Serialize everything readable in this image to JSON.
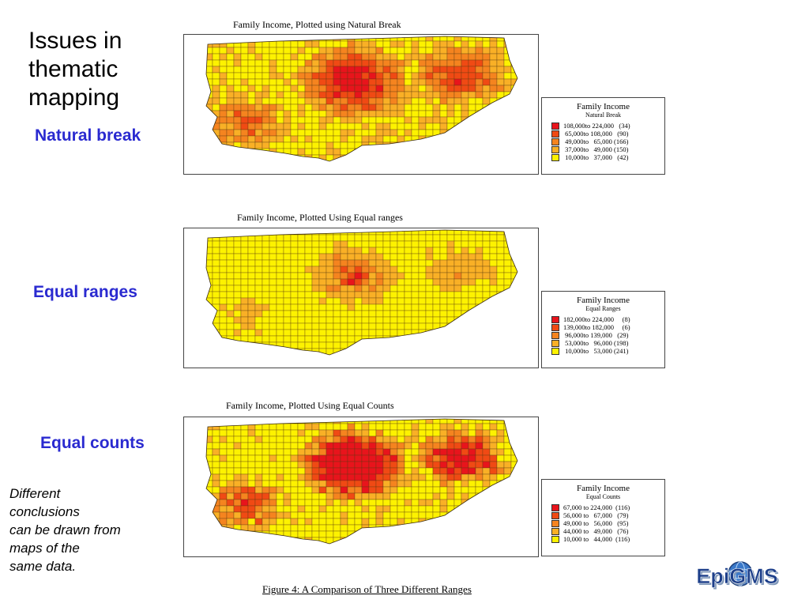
{
  "slide": {
    "title": "Issues in thematic mapping",
    "note_lines": [
      "Different",
      "conclusions",
      "can be drawn from",
      "maps of the",
      "same data."
    ],
    "figure_caption": "Figure 4:  A Comparison of Three Different Ranges",
    "logo_text": "EpiGMS",
    "label_color": "#2a2ad0"
  },
  "maps": [
    {
      "side_label": "Natural break",
      "caption": "Family  Income, Plotted using Natural Break",
      "legend_title": "Family Income",
      "legend_subtitle": "Natural Break",
      "classes": [
        {
          "range": "108,000to 224,000   (34)",
          "color": "#e8141c"
        },
        {
          "range": " 65,000to 108,000   (90)",
          "color": "#f04a14"
        },
        {
          "range": " 49,000to   65,000 (166)",
          "color": "#f5841f"
        },
        {
          "range": " 37,000to   49,000 (150)",
          "color": "#f9b026"
        },
        {
          "range": " 10,000to   37,000   (42)",
          "color": "#fdf200"
        }
      ]
    },
    {
      "side_label": "Equal ranges",
      "caption": "Family Income, Plotted Using Equal ranges",
      "legend_title": "Family Income",
      "legend_subtitle": "Equal Ranges",
      "classes": [
        {
          "range": "182,000to 224,000     (8)",
          "color": "#e8141c"
        },
        {
          "range": "139,000to 182,000     (6)",
          "color": "#f04a14"
        },
        {
          "range": " 96,000to 139,000   (29)",
          "color": "#f5841f"
        },
        {
          "range": " 53,000to   96,000 (198)",
          "color": "#f9b026"
        },
        {
          "range": " 10,000to   53,000 (241)",
          "color": "#fdf200"
        }
      ]
    },
    {
      "side_label": "Equal counts",
      "caption": "Family Income, Plotted Using Equal Counts",
      "legend_title": "Family Income",
      "legend_subtitle": "Equal Counts",
      "classes": [
        {
          "range": "67,000 to 224,000  (116)",
          "color": "#e8141c"
        },
        {
          "range": "56,000 to   67,000   (79)",
          "color": "#f04a14"
        },
        {
          "range": "49,000 to   56,000   (95)",
          "color": "#f5841f"
        },
        {
          "range": "44,000 to   49,000   (76)",
          "color": "#f9b026"
        },
        {
          "range": "10,000 to   44,000  (116)",
          "color": "#fdf200"
        }
      ]
    }
  ]
}
